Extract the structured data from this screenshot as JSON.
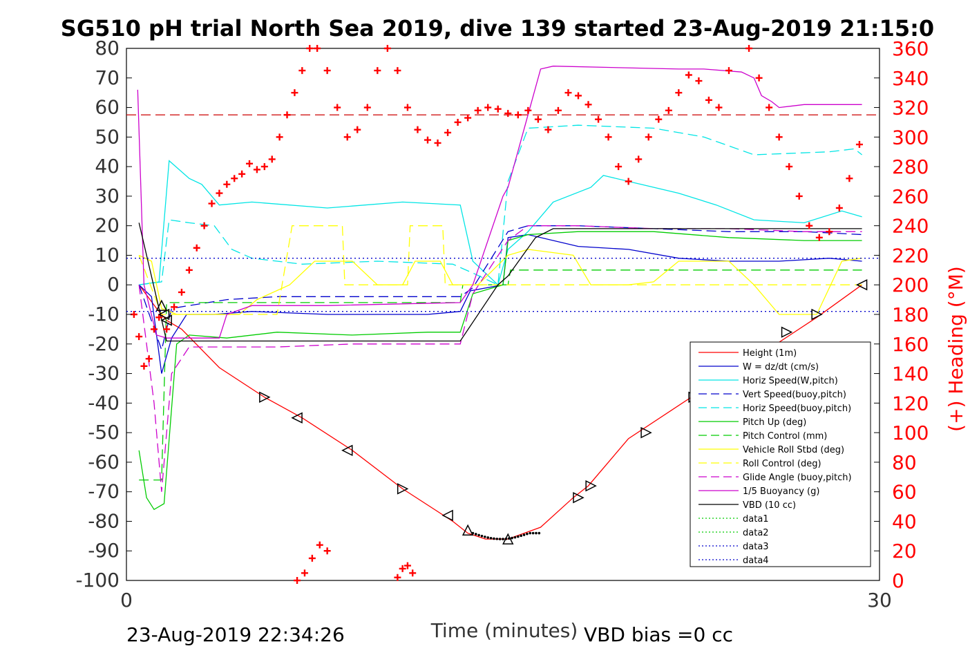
{
  "chart_data": {
    "type": "line",
    "title": "SG510 pH trial North Sea 2019, dive 139 started 23-Aug-2019 21:15:0",
    "xlabel": "Time (minutes)",
    "ylabel_right": "(+) Heading (°M)",
    "footer_left": "23-Aug-2019 22:34:26",
    "footer_right": "VBD bias =0 cc",
    "xlim": [
      0,
      30
    ],
    "ylim_left": [
      -100,
      80
    ],
    "ylim_right": [
      0,
      360
    ],
    "x_ticks": [
      0,
      30
    ],
    "y_ticks_left": [
      80,
      70,
      60,
      50,
      40,
      30,
      20,
      10,
      0,
      -10,
      -20,
      -30,
      -40,
      -50,
      -60,
      -70,
      -80,
      -90,
      -100
    ],
    "y_ticks_right": [
      360,
      340,
      320,
      300,
      280,
      260,
      240,
      220,
      200,
      180,
      160,
      140,
      120,
      100,
      80,
      60,
      40,
      20,
      0
    ],
    "colors": {
      "red": "#ff0000",
      "blue": "#0000cc",
      "cyan": "#00e5e5",
      "green": "#00cc00",
      "yellow": "#ffff00",
      "magenta": "#cc00cc",
      "black": "#000000"
    },
    "legend_position": "lower-right",
    "series": [
      {
        "name": "Height (1m)",
        "color": "#ff0000",
        "style": "solid",
        "x": [
          0.5,
          1.2,
          1.6,
          2.2,
          3.7,
          5.5,
          7.0,
          9.0,
          11.0,
          13.0,
          13.6,
          14.3,
          15.2,
          16.5,
          17.8,
          18.4,
          20.0,
          22.5,
          25.0,
          27.5,
          29.3
        ],
        "y": [
          0,
          -8,
          -12,
          -15,
          -28,
          -38,
          -45,
          -56,
          -69,
          -80,
          -84,
          -86,
          -86,
          -82,
          -72,
          -68,
          -52,
          -38,
          -25,
          -11,
          0
        ]
      },
      {
        "name": "W = dz/dt (cm/s)",
        "color": "#0000cc",
        "style": "solid",
        "x": [
          0.5,
          1.0,
          1.4,
          1.8,
          2.4,
          3.5,
          5.0,
          8.0,
          10.0,
          12.0,
          13.3,
          13.7,
          15.0,
          15.2,
          16.0,
          18.0,
          20.0,
          22.0,
          24.0,
          26.0,
          28.0,
          29.3
        ],
        "y": [
          0,
          -4,
          -30,
          -18,
          -10,
          -10,
          -9,
          -10,
          -10,
          -10,
          -9,
          -2,
          0,
          16,
          17,
          13,
          12,
          9,
          8,
          8,
          9,
          8
        ]
      },
      {
        "name": "Horiz Speed(W,pitch)",
        "color": "#00e5e5",
        "style": "solid",
        "x": [
          0.5,
          1.3,
          1.7,
          2.5,
          3.0,
          3.7,
          5.0,
          8.0,
          11.0,
          13.3,
          13.8,
          14.8,
          15.2,
          16.0,
          17.0,
          18.5,
          19.0,
          20.5,
          22.0,
          23.5,
          25.0,
          27.0,
          28.5,
          29.3
        ],
        "y": [
          0,
          1,
          42,
          36,
          34,
          27,
          28,
          26,
          28,
          27,
          8,
          0,
          12,
          18,
          28,
          33,
          37,
          34,
          31,
          27,
          22,
          21,
          25,
          23
        ]
      },
      {
        "name": "Vert Speed(buoy,pitch)",
        "color": "#0000cc",
        "style": "dashed",
        "x": [
          0.5,
          1.4,
          1.8,
          2.5,
          4.0,
          6.0,
          9.0,
          12.0,
          13.3,
          13.8,
          15.2,
          16.0,
          18.0,
          21.0,
          24.0,
          27.0,
          29.3
        ],
        "y": [
          0,
          -22,
          -8,
          -7,
          -5,
          -4,
          -4,
          -4,
          -4,
          -1,
          18,
          20,
          20,
          19,
          18,
          18,
          17
        ]
      },
      {
        "name": "Horiz Speed(buoy,pitch)",
        "color": "#00e5e5",
        "style": "dashed",
        "x": [
          0.5,
          1.4,
          1.7,
          2.5,
          3.5,
          4.2,
          5.0,
          7.0,
          10.0,
          13.0,
          13.8,
          14.8,
          15.2,
          16.0,
          18.0,
          21.0,
          23.0,
          25.0,
          28.0,
          29.0,
          29.3
        ],
        "y": [
          0,
          1,
          22,
          21,
          20,
          12,
          9,
          7,
          8,
          7,
          4,
          0,
          35,
          53,
          54,
          53,
          50,
          44,
          45,
          46,
          44
        ]
      },
      {
        "name": "Pitch Up (deg)",
        "color": "#00cc00",
        "style": "solid",
        "x": [
          0.5,
          0.8,
          1.1,
          1.5,
          2.0,
          2.5,
          4.0,
          6.0,
          9.0,
          12.0,
          13.3,
          13.8,
          15.0,
          15.2,
          16.0,
          18.0,
          21.0,
          24.0,
          27.0,
          29.3
        ],
        "y": [
          -56,
          -72,
          -76,
          -74,
          -20,
          -17,
          -18,
          -16,
          -17,
          -16,
          -16,
          -3,
          0,
          15,
          17,
          18,
          18,
          16,
          15,
          15
        ]
      },
      {
        "name": "Pitch Control (mm)",
        "color": "#00cc00",
        "style": "dashed",
        "x": [
          0.5,
          1.4,
          1.6,
          2.0,
          13.3,
          13.4,
          15.2,
          15.3,
          29.3
        ],
        "y": [
          -66,
          -66,
          -6,
          -6,
          -6,
          0,
          0,
          5,
          5
        ]
      },
      {
        "name": "Vehicle Roll Stbd (deg)",
        "color": "#ffff00",
        "style": "solid",
        "x": [
          0.5,
          1.0,
          1.4,
          2.0,
          4.5,
          5.2,
          6.5,
          7.5,
          9.0,
          10.0,
          11.0,
          11.5,
          12.5,
          13.0,
          14.0,
          15.2,
          16.0,
          17.8,
          18.5,
          20.0,
          21.0,
          22.0,
          24.0,
          25.0,
          26.0,
          27.5,
          28.5,
          29.3
        ],
        "y": [
          10,
          8,
          -8,
          -10,
          -10,
          -5,
          0,
          8,
          8,
          0,
          0,
          8,
          8,
          0,
          0,
          10,
          12,
          10,
          0,
          0,
          1,
          8,
          8,
          0,
          -10,
          -10,
          8,
          9
        ]
      },
      {
        "name": "Roll Control (deg)",
        "color": "#ffff00",
        "style": "dashed",
        "x": [
          0.5,
          1.4,
          2.0,
          6.0,
          6.6,
          8.6,
          8.7,
          11.2,
          11.3,
          12.6,
          12.7,
          29.3
        ],
        "y": [
          10,
          -10,
          -10,
          -10,
          20,
          20,
          0,
          0,
          20,
          20,
          0,
          0
        ]
      },
      {
        "name": "Glide Angle (buoy,pitch)",
        "color": "#cc00cc",
        "style": "dashed",
        "x": [
          0.5,
          1.1,
          1.4,
          1.8,
          2.5,
          4.0,
          6.0,
          9.0,
          12.0,
          13.3,
          13.8,
          15.2,
          16.0,
          18.0,
          21.0,
          24.0,
          27.0,
          29.3
        ],
        "y": [
          0,
          -40,
          -70,
          -30,
          -21,
          -21,
          -21,
          -20,
          -20,
          -20,
          -3,
          15,
          20,
          20,
          19,
          19,
          18,
          18
        ]
      },
      {
        "name": "1/5 Buoyancy (g)",
        "color": "#cc00cc",
        "style": "solid",
        "x": [
          0.45,
          0.7,
          1.2,
          1.6,
          2.0,
          3.0,
          3.7,
          4.0,
          5.0,
          8.0,
          13.3,
          13.8,
          15.0,
          15.2,
          16.5,
          17.0,
          22.0,
          23.0,
          24.5,
          25.0,
          25.3,
          25.7,
          26.0,
          27.0,
          29.3
        ],
        "y": [
          66,
          0,
          -17,
          -18,
          -18,
          -18,
          -18,
          -10,
          -7,
          -7,
          -6,
          0,
          30,
          33,
          73,
          74,
          73,
          73,
          72,
          70,
          64,
          62,
          60,
          61,
          61
        ]
      },
      {
        "name": "VBD (10 cc)",
        "color": "#000000",
        "style": "solid",
        "x": [
          0.5,
          1.6,
          2.0,
          13.3,
          14.8,
          15.2,
          16.3,
          17.0,
          29.3
        ],
        "y": [
          21,
          -19,
          -19,
          -19,
          0,
          3,
          16,
          19,
          19
        ]
      },
      {
        "name": "data1",
        "color": "#00cc00",
        "style": "dotted",
        "x": [],
        "y": []
      },
      {
        "name": "data2",
        "color": "#00cc00",
        "style": "dotted",
        "x": [],
        "y": []
      },
      {
        "name": "data3",
        "color": "#0000cc",
        "style": "dotted",
        "x": [
          0,
          30
        ],
        "y": [
          9,
          9
        ]
      },
      {
        "name": "data4",
        "color": "#0000cc",
        "style": "dotted",
        "x": [
          0,
          30
        ],
        "y": [
          -9,
          -9
        ]
      }
    ],
    "reference_line": {
      "color": "#cc0000",
      "style": "dashed",
      "axis": "right",
      "value": 315
    },
    "heading": {
      "marker": "+",
      "color": "#ff0000",
      "axis": "right",
      "segments": [
        {
          "x": [
            0.3,
            0.5,
            0.7,
            0.9,
            1.1,
            1.3,
            1.6,
            1.9,
            2.2,
            2.5,
            2.8,
            3.1,
            3.4,
            3.7,
            4.0,
            4.3,
            4.6,
            4.9,
            5.2,
            5.5,
            5.8,
            6.1,
            6.4,
            6.7,
            7.0,
            7.3,
            7.6
          ],
          "y": [
            180,
            165,
            145,
            150,
            170,
            178,
            170,
            185,
            195,
            210,
            225,
            240,
            255,
            262,
            268,
            272,
            275,
            282,
            278,
            280,
            285,
            300,
            315,
            330,
            345,
            360,
            362
          ]
        },
        {
          "x": [
            7.6,
            8.0,
            8.4,
            8.8,
            9.2,
            9.6,
            10.0,
            10.4,
            10.8,
            11.2,
            11.6,
            12.0,
            12.4,
            12.8,
            13.2,
            13.6,
            14.0,
            14.4,
            14.8,
            15.2,
            15.6,
            16.0,
            16.4,
            16.8,
            17.2,
            17.6,
            18.0,
            18.4,
            18.8,
            19.2,
            19.6,
            20.0,
            20.4,
            20.8,
            21.2,
            21.6,
            22.0,
            22.4,
            22.8,
            23.2,
            23.6,
            24.0,
            24.4,
            24.8,
            25.2,
            25.6,
            26.0,
            26.4,
            26.8,
            27.2,
            27.6,
            28.0,
            28.4,
            28.8,
            29.2
          ],
          "y": [
            360,
            345,
            320,
            300,
            305,
            320,
            345,
            360,
            345,
            320,
            305,
            298,
            296,
            303,
            310,
            313,
            318,
            320,
            319,
            316,
            315,
            318,
            312,
            305,
            318,
            330,
            328,
            322,
            312,
            300,
            280,
            270,
            285,
            300,
            312,
            318,
            330,
            342,
            338,
            325,
            320,
            345,
            362,
            360,
            340,
            320,
            300,
            280,
            260,
            240,
            232,
            236,
            252,
            272,
            295
          ]
        },
        {
          "x": [
            6.8,
            7.1,
            7.4,
            7.7,
            8.0
          ],
          "y": [
            0,
            5,
            15,
            24,
            20
          ]
        },
        {
          "x": [
            10.8,
            11.0,
            11.2,
            11.4
          ],
          "y": [
            2,
            8,
            10,
            5
          ]
        }
      ]
    },
    "triangle_markers": {
      "color": "#000000",
      "points": [
        {
          "x": 1.4,
          "y": -7,
          "dir": "up"
        },
        {
          "x": 1.5,
          "y": -10,
          "dir": "left"
        },
        {
          "x": 1.6,
          "y": -12,
          "dir": "left"
        },
        {
          "x": 5.5,
          "y": -38,
          "dir": "right"
        },
        {
          "x": 6.8,
          "y": -45,
          "dir": "left"
        },
        {
          "x": 8.8,
          "y": -56,
          "dir": "left"
        },
        {
          "x": 11.0,
          "y": -69,
          "dir": "right"
        },
        {
          "x": 12.8,
          "y": -78,
          "dir": "left"
        },
        {
          "x": 13.6,
          "y": -83,
          "dir": "up"
        },
        {
          "x": 15.2,
          "y": -86,
          "dir": "up"
        },
        {
          "x": 18.0,
          "y": -72,
          "dir": "right"
        },
        {
          "x": 18.5,
          "y": -68,
          "dir": "right"
        },
        {
          "x": 20.7,
          "y": -50,
          "dir": "right"
        },
        {
          "x": 22.6,
          "y": -38,
          "dir": "right"
        },
        {
          "x": 26.3,
          "y": -16,
          "dir": "right"
        },
        {
          "x": 27.5,
          "y": -10,
          "dir": "right"
        },
        {
          "x": 29.3,
          "y": 0,
          "dir": "left"
        }
      ]
    }
  }
}
